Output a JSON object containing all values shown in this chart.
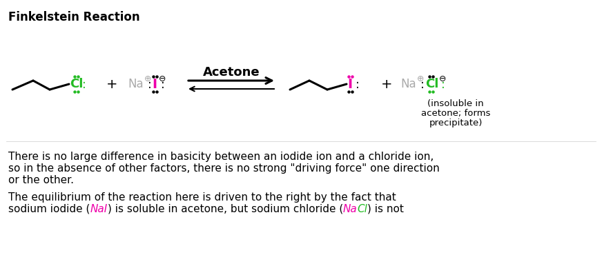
{
  "title": "Finkelstein Reaction",
  "background_color": "#ffffff",
  "colors": {
    "black": "#000000",
    "green": "#22bb22",
    "magenta": "#ee00aa",
    "gray": "#aaaaaa"
  },
  "paragraph1_lines": [
    "There is no large difference in basicity between an iodide ion and a chloride ion,",
    "so in the absence of other factors, there is no strong \"driving force\" one direction",
    "or the other."
  ],
  "paragraph2_line1": "The equilibrium of the reaction here is driven to the right by the fact that",
  "paragraph2_line2_parts": [
    {
      "text": "sodium iodide (",
      "color": "black"
    },
    {
      "text": "NaI",
      "color": "magenta"
    },
    {
      "text": ") is soluble in acetone, but sodium chloride (",
      "color": "black"
    },
    {
      "text": "Na",
      "color": "magenta"
    },
    {
      "text": "Cl",
      "color": "green"
    },
    {
      "text": ") is not",
      "color": "black"
    }
  ],
  "insoluble_text_lines": [
    "(insoluble in",
    "acetone; forms",
    "precipitate)"
  ],
  "acetone_label": "Acetone"
}
